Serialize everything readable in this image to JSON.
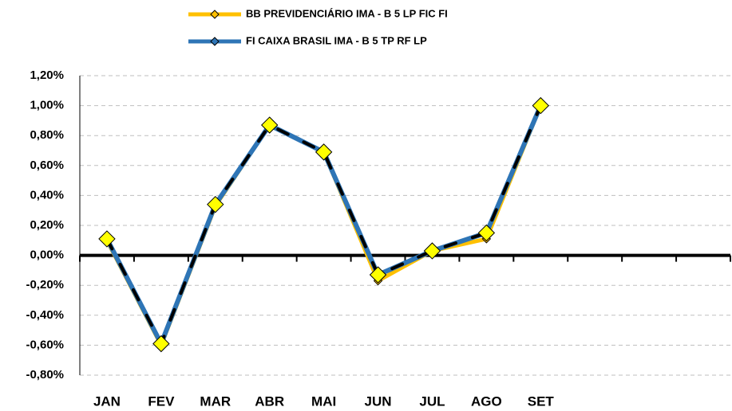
{
  "chart_data": {
    "type": "line",
    "categories": [
      "JAN",
      "FEV",
      "MAR",
      "ABR",
      "MAI",
      "JUN",
      "JUL",
      "AGO",
      "SET",
      null,
      null,
      null
    ],
    "series": [
      {
        "name": "BB PREVIDENCIÁRIO IMA - B 5 LP FIC FI",
        "color": "#FFC000",
        "values": [
          0.1,
          -0.6,
          0.33,
          0.87,
          0.69,
          -0.17,
          0.03,
          0.11,
          1.0,
          null,
          null,
          null
        ]
      },
      {
        "name": "FI CAIXA BRASIL IMA - B 5 TP RF LP",
        "color": "#2E75B6",
        "values": [
          0.11,
          -0.59,
          0.34,
          0.87,
          0.69,
          -0.13,
          0.03,
          0.15,
          1.0,
          null,
          null,
          null
        ]
      }
    ],
    "ylim": [
      -0.8,
      1.2
    ],
    "yticks": [
      {
        "value": -0.8,
        "label": "-0,80%"
      },
      {
        "value": -0.6,
        "label": "-0,60%"
      },
      {
        "value": -0.4,
        "label": "-0,40%"
      },
      {
        "value": -0.2,
        "label": "-0,20%"
      },
      {
        "value": 0,
        "label": "0,00%"
      },
      {
        "value": 0.2,
        "label": "0,20%"
      },
      {
        "value": 0.4,
        "label": "0,40%"
      },
      {
        "value": 0.6,
        "label": "0,60%"
      },
      {
        "value": 0.8,
        "label": "0,80%"
      },
      {
        "value": 1.0,
        "label": "1,00%"
      },
      {
        "value": 1.2,
        "label": "1,20%"
      }
    ],
    "grid": true
  }
}
